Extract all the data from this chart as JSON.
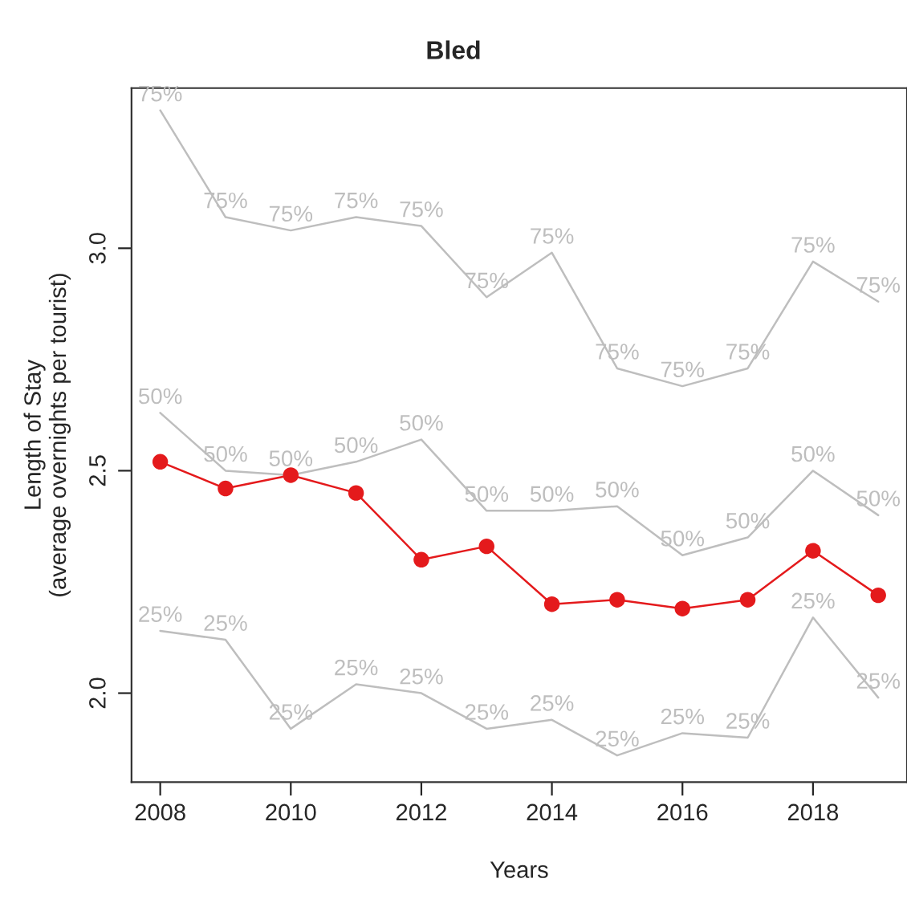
{
  "chart_data": {
    "type": "line",
    "title": "Bled",
    "xlabel": "Years",
    "ylabel": "Length of Stay\n(average overnights per tourist)",
    "x": [
      2008,
      2009,
      2010,
      2011,
      2012,
      2013,
      2014,
      2015,
      2016,
      2017,
      2018,
      2019
    ],
    "series": [
      {
        "name": "75%",
        "color": "#bebebe",
        "marker": "none",
        "values": [
          3.31,
          3.07,
          3.04,
          3.07,
          3.05,
          2.89,
          2.99,
          2.73,
          2.69,
          2.73,
          2.97,
          2.88
        ]
      },
      {
        "name": "50%",
        "color": "#bebebe",
        "marker": "none",
        "values": [
          2.63,
          2.5,
          2.49,
          2.52,
          2.57,
          2.41,
          2.41,
          2.42,
          2.31,
          2.35,
          2.5,
          2.4
        ]
      },
      {
        "name": "25%",
        "color": "#bebebe",
        "marker": "none",
        "values": [
          2.14,
          2.12,
          1.92,
          2.02,
          2.0,
          1.92,
          1.94,
          1.86,
          1.91,
          1.9,
          2.17,
          1.99
        ]
      },
      {
        "color": "#e41a1c",
        "marker": "circle",
        "values": [
          2.52,
          2.46,
          2.49,
          2.45,
          2.3,
          2.33,
          2.2,
          2.21,
          2.19,
          2.21,
          2.32,
          2.22
        ]
      }
    ],
    "xlim": [
      2007.56,
      2019.44
    ],
    "ylim": [
      1.8,
      3.36
    ],
    "xticks": [
      2008,
      2010,
      2012,
      2014,
      2016,
      2018
    ],
    "yticks": [
      {
        "value": 2.0,
        "label": "2.0"
      },
      {
        "value": 2.5,
        "label": "2.5"
      },
      {
        "value": 3.0,
        "label": "3.0"
      }
    ],
    "grid": false,
    "legend": false
  }
}
